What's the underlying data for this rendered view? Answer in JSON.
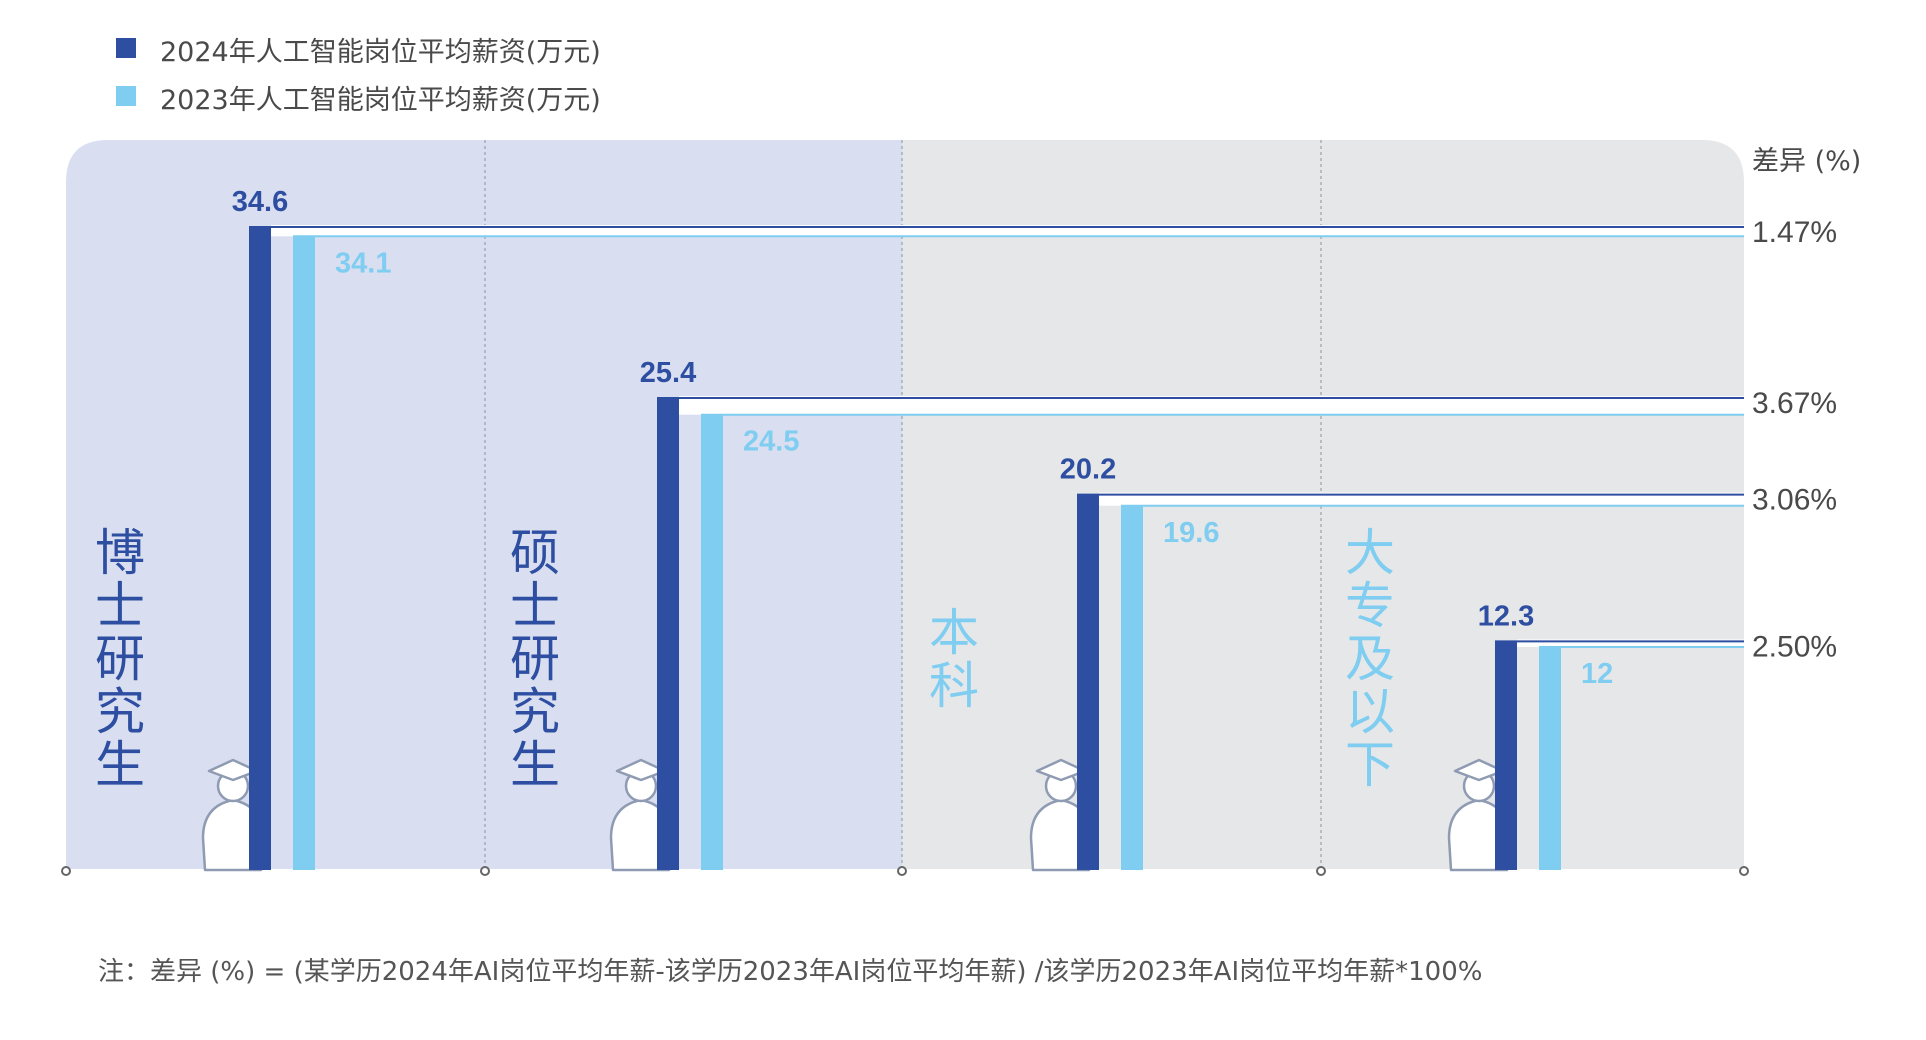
{
  "legend": [
    {
      "label": "2024年人工智能岗位平均薪资(万元)",
      "color": "#2e4ea2"
    },
    {
      "label": "2023年人工智能岗位平均薪资(万元)",
      "color": "#7fcdf0"
    }
  ],
  "diff_header": "差异 (%)",
  "note": "注：差异 (%) = (某学历2024年AI岗位平均年薪-该学历2023年AI岗位平均年薪) /该学历2023年AI岗位平均年薪*100%",
  "colors": {
    "series_2024": "#2e4ea2",
    "series_2023": "#7fcdf0",
    "panel_purple": "#d9dff0",
    "panel_gray": "#e6e7e9",
    "divider": "#9aa0aa",
    "category_dark": "#2e4ea2",
    "category_light": "#7fcdf0"
  },
  "chart_data": {
    "type": "bar",
    "categories": [
      "博士研究生",
      "硕士研究生",
      "本科",
      "大专及以下"
    ],
    "series": [
      {
        "name": "2024年人工智能岗位平均薪资(万元)",
        "values": [
          34.6,
          25.4,
          20.2,
          12.3
        ]
      },
      {
        "name": "2023年人工智能岗位平均薪资(万元)",
        "values": [
          34.1,
          24.5,
          19.6,
          12
        ]
      }
    ],
    "value_labels_2024": [
      "34.6",
      "25.4",
      "20.2",
      "12.3"
    ],
    "value_labels_2023": [
      "34.1",
      "24.5",
      "19.6",
      "12"
    ],
    "difference_pct": [
      "1.47%",
      "3.67%",
      "3.06%",
      "2.50%"
    ],
    "ylim": [
      0,
      36
    ],
    "grid": false,
    "legend_position": "top-left"
  }
}
